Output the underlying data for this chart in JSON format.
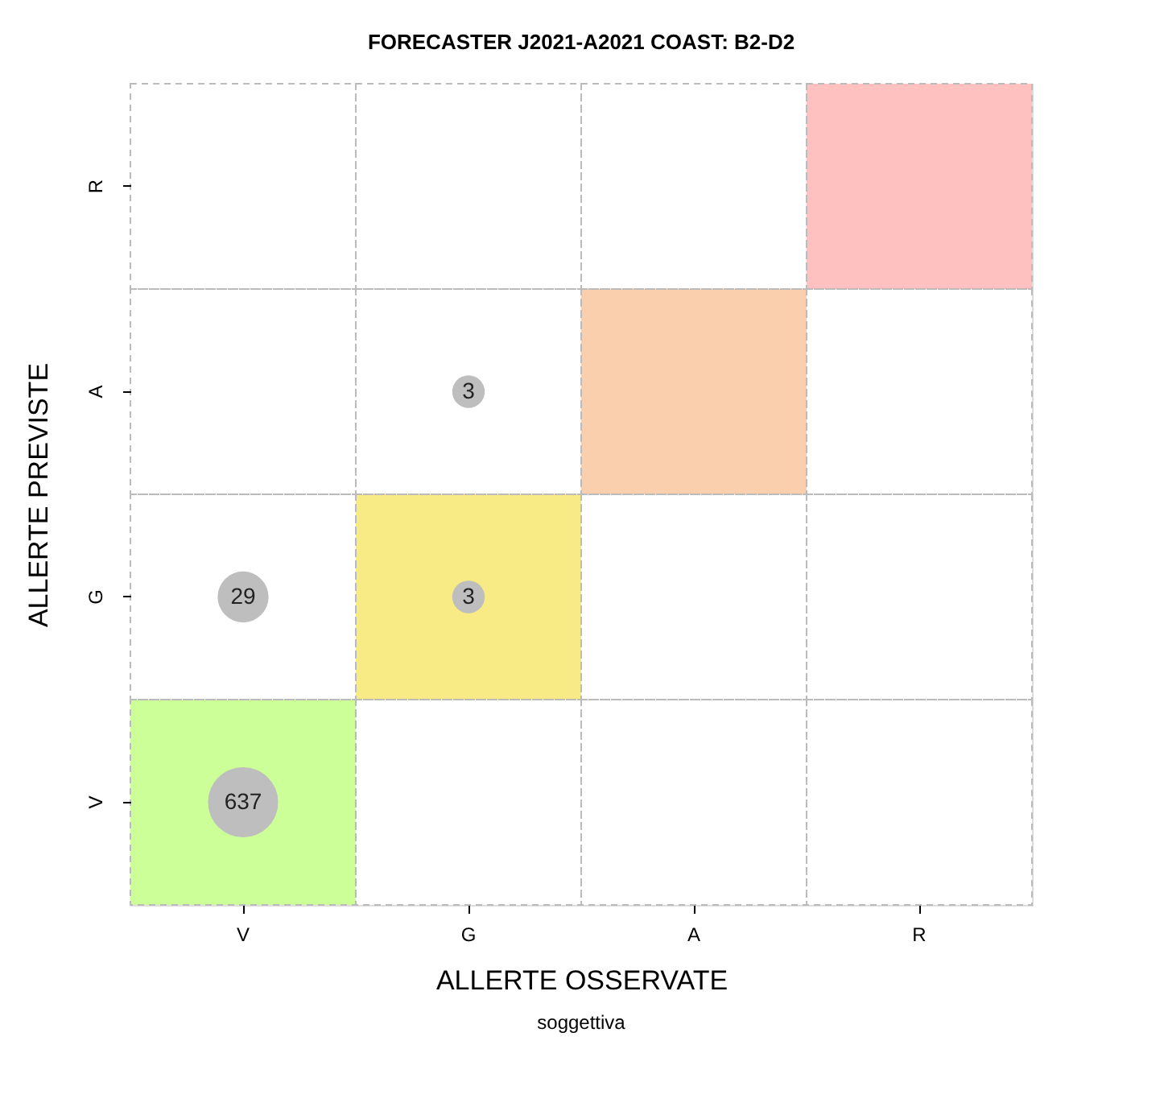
{
  "chart_data": {
    "type": "heatmap",
    "title": "FORECASTER J2021-A2021 COAST: B2-D2",
    "xlabel": "ALLERTE OSSERVATE",
    "ylabel": "ALLERTE PREVISTE",
    "categories": [
      "V",
      "G",
      "A",
      "R"
    ],
    "y_categories": [
      "R",
      "A",
      "G",
      "V"
    ],
    "cells": [
      [
        null,
        null,
        null,
        null
      ],
      [
        null,
        3,
        null,
        null
      ],
      [
        29,
        3,
        null,
        null
      ],
      [
        637,
        null,
        null,
        null
      ]
    ],
    "colors": [
      [
        "#ffffff",
        "#ffffff",
        "#ffffff",
        "#ffc0c0"
      ],
      [
        "#ffffff",
        "#ffffff",
        "#f9cfae",
        "#ffffff"
      ],
      [
        "#ffffff",
        "#f8ea85",
        "#ffffff",
        "#ffffff"
      ],
      [
        "#cdff99",
        "#ffffff",
        "#ffffff",
        "#ffffff"
      ]
    ],
    "marker": "circle",
    "data_labels": true,
    "annotations": [
      "soggettiva"
    ]
  }
}
